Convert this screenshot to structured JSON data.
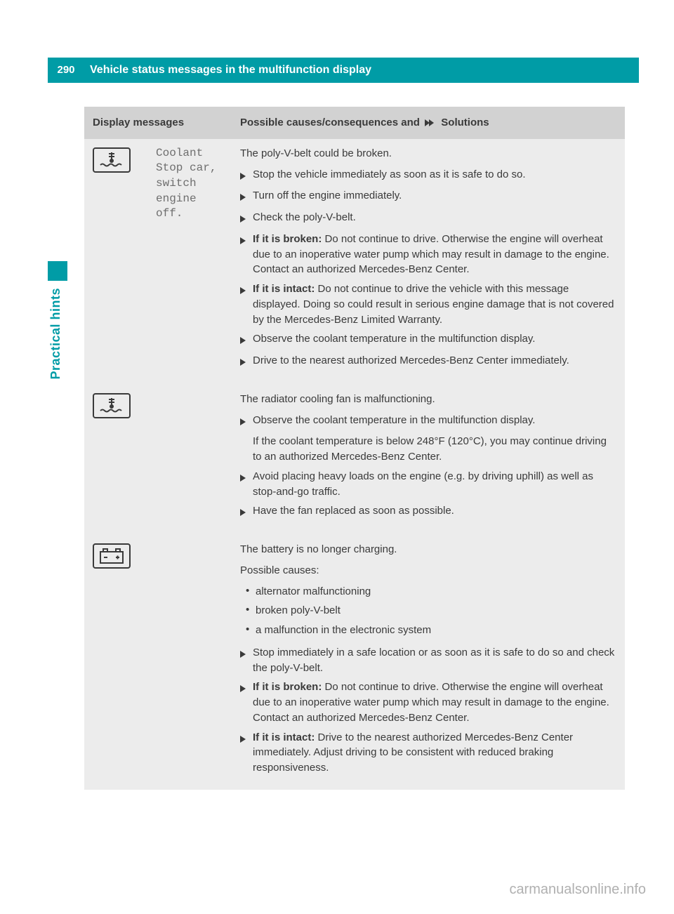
{
  "page": {
    "number": "290",
    "title": "Vehicle status messages in the multifunction display",
    "section_label": "Practical hints"
  },
  "table": {
    "header": {
      "col1": "Display messages",
      "col2_prefix": "Possible causes/consequences and ",
      "col2_suffix": " Solutions"
    },
    "rows": [
      {
        "icon": "coolant-temp-icon",
        "message": "Coolant\nStop car,\nswitch\nengine\noff.",
        "intro": "The poly-V-belt could be broken.",
        "steps": [
          {
            "type": "arrow",
            "text": "Stop the vehicle immediately as soon as it is safe to do so."
          },
          {
            "type": "arrow",
            "text": "Turn off the engine immediately."
          },
          {
            "type": "arrow",
            "text": "Check the poly-V-belt."
          },
          {
            "type": "arrow",
            "bold": "If it is broken: ",
            "text": "Do not continue to drive. Otherwise the engine will overheat due to an inoperative water pump which may result in damage to the engine. Contact an authorized Mercedes-Benz Center."
          },
          {
            "type": "arrow",
            "bold": "If it is intact: ",
            "text": "Do not continue to drive the vehicle with this message displayed. Doing so could result in serious engine damage that is not covered by the Mercedes-Benz Limited Warranty."
          },
          {
            "type": "arrow",
            "text": "Observe the coolant temperature in the multifunction display."
          },
          {
            "type": "arrow",
            "text": "Drive to the nearest authorized Mercedes-Benz Center immediately."
          }
        ]
      },
      {
        "icon": "coolant-temp-icon",
        "message": "",
        "intro": "The radiator cooling fan is malfunctioning.",
        "steps": [
          {
            "type": "arrow",
            "text": "Observe the coolant temperature in the multifunction display."
          },
          {
            "type": "plain",
            "text": "If the coolant temperature is below 248°F (120°C), you may continue driving to an authorized Mercedes-Benz Center."
          },
          {
            "type": "arrow",
            "text": "Avoid placing heavy loads on the engine (e.g. by driving uphill) as well as stop-and-go traffic."
          },
          {
            "type": "arrow",
            "text": "Have the fan replaced as soon as possible."
          }
        ]
      },
      {
        "icon": "battery-icon",
        "message": "",
        "intro": "The battery is no longer charging.",
        "sub_intro": "Possible causes:",
        "bullets": [
          "alternator malfunctioning",
          "broken poly-V-belt",
          "a malfunction in the electronic system"
        ],
        "steps": [
          {
            "type": "arrow",
            "text": "Stop immediately in a safe location or as soon as it is safe to do so and check the poly-V-belt."
          },
          {
            "type": "arrow",
            "bold": "If it is broken: ",
            "text": "Do not continue to drive. Otherwise the engine will overheat due to an inoperative water pump which may result in damage to the engine. Contact an authorized Mercedes-Benz Center."
          },
          {
            "type": "arrow",
            "bold": "If it is intact: ",
            "text": "Drive to the nearest authorized Mercedes-Benz Center immediately. Adjust driving to be consistent with reduced braking responsiveness."
          }
        ]
      }
    ]
  },
  "footer": "carmanualsonline.info",
  "colors": {
    "brand": "#009ca6",
    "header_gray": "#d2d2d2",
    "row_gray": "#ececec",
    "text": "#3a3a3a",
    "mono_text": "#6e6e6e",
    "footer_text": "#b0b0b0"
  }
}
